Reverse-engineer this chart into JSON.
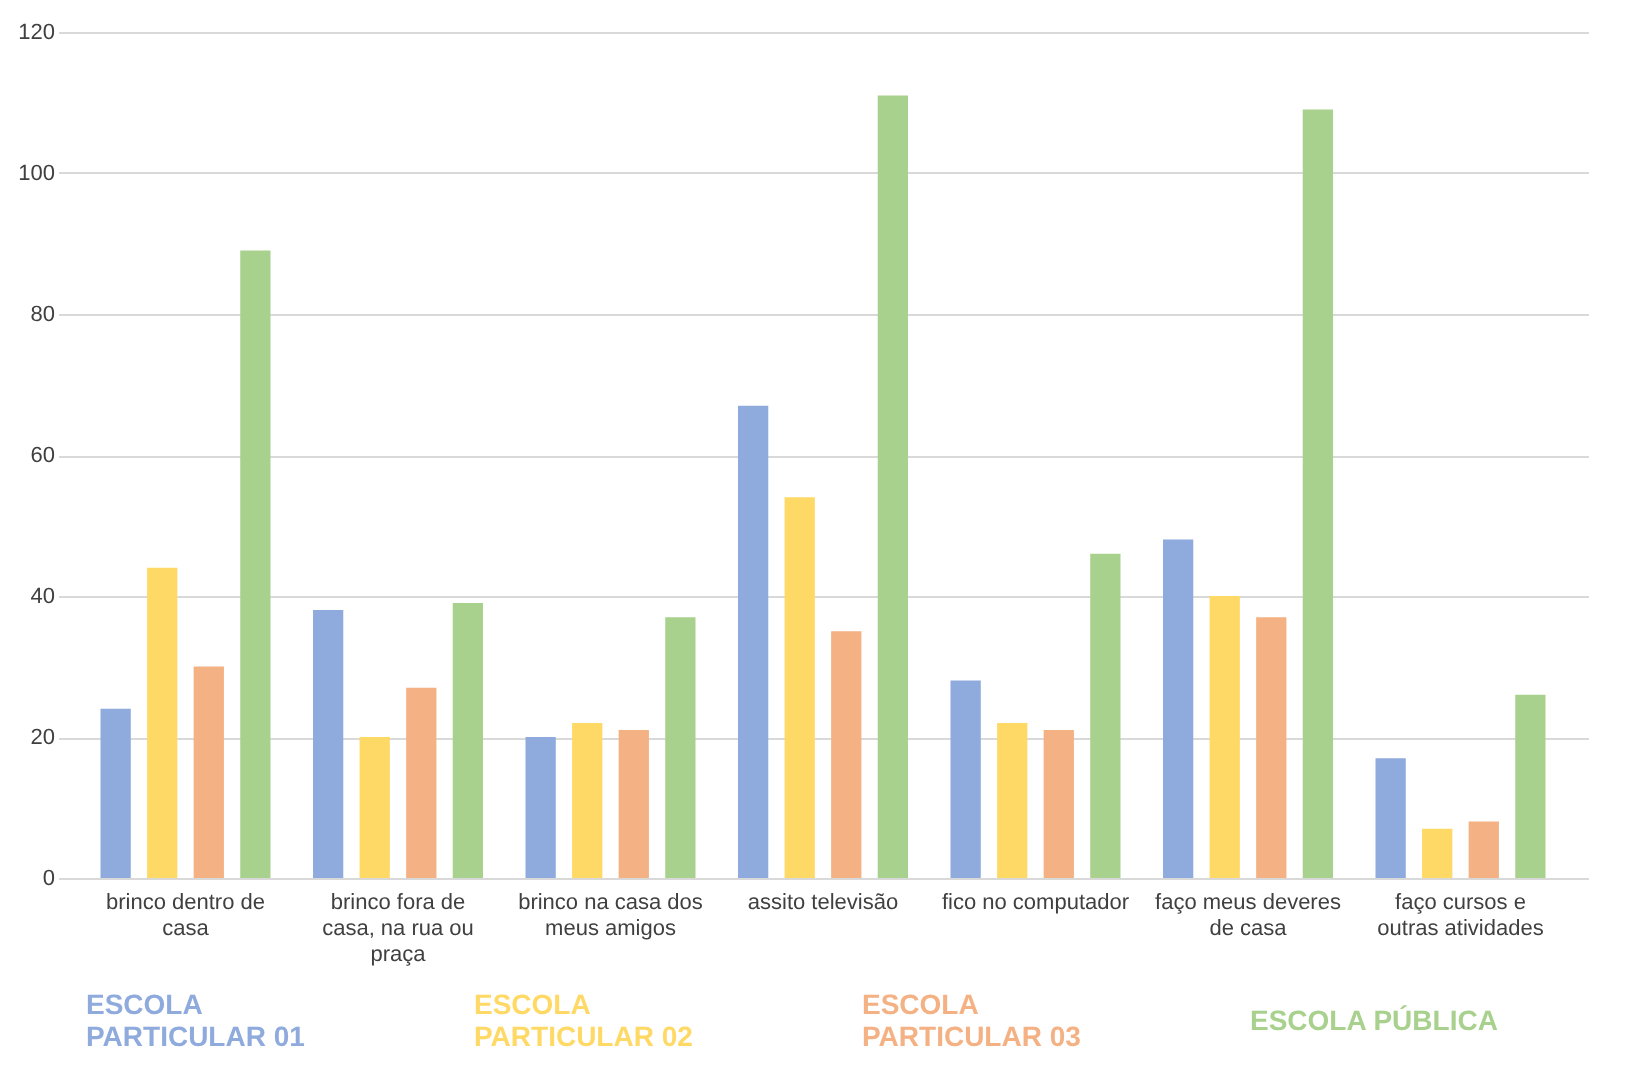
{
  "chart_data": {
    "type": "bar",
    "categories": [
      "brinco dentro de casa",
      "brinco fora de casa, na rua ou praça",
      "brinco na casa dos meus amigos",
      "assito televisão",
      "fico no computador",
      "faço meus deveres de casa",
      "faço cursos e outras atividades"
    ],
    "series": [
      {
        "name": "ESCOLA PARTICULAR 01",
        "color": "#8faadc",
        "values": [
          24,
          38,
          20,
          67,
          28,
          48,
          17
        ]
      },
      {
        "name": "ESCOLA PARTICULAR 02",
        "color": "#ffd966",
        "values": [
          44,
          20,
          22,
          54,
          22,
          40,
          7
        ]
      },
      {
        "name": "ESCOLA PARTICULAR 03",
        "color": "#f4b183",
        "values": [
          30,
          27,
          21,
          35,
          21,
          37,
          8
        ]
      },
      {
        "name": "ESCOLA PÚBLICA",
        "color": "#a9d18e",
        "values": [
          89,
          39,
          37,
          111,
          46,
          109,
          26
        ]
      }
    ],
    "ylim": [
      0,
      120
    ],
    "yticks": [
      0,
      20,
      40,
      60,
      80,
      100,
      120
    ],
    "grid": "y",
    "legend": "bottom"
  }
}
